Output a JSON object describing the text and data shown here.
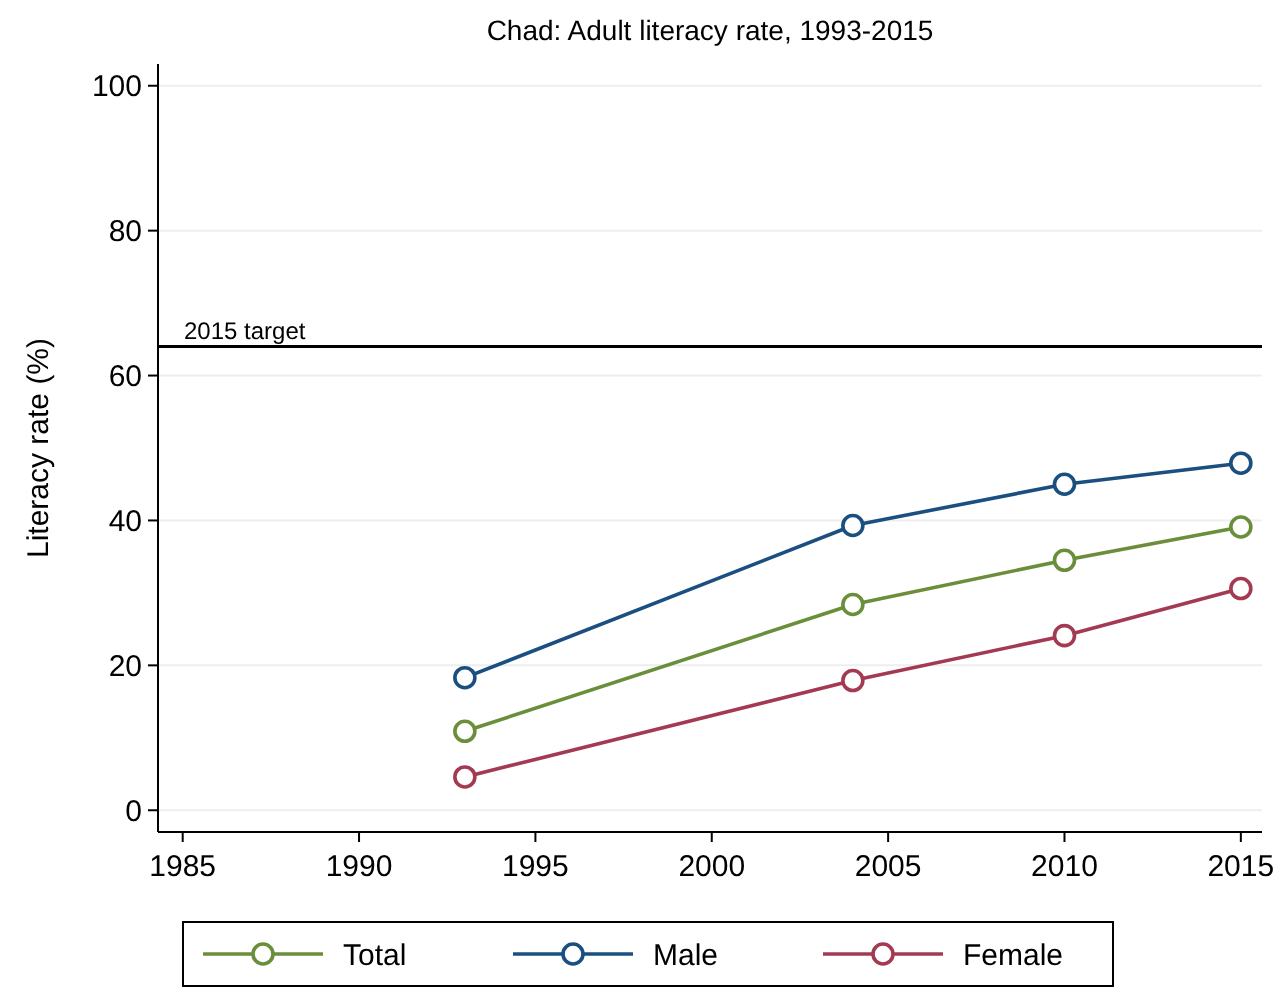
{
  "chart_data": {
    "type": "line",
    "title": "Chad: Adult literacy rate, 1993-2015",
    "ylabel": "Literacy rate (%)",
    "x": [
      1993,
      2004,
      2010,
      2015
    ],
    "series": [
      {
        "name": "Total",
        "color": "#6b8e3a",
        "values": [
          10.9,
          28.4,
          34.5,
          39.1
        ]
      },
      {
        "name": "Male",
        "color": "#1a4f7f",
        "values": [
          18.3,
          39.3,
          45.0,
          47.9
        ]
      },
      {
        "name": "Female",
        "color": "#a33a52",
        "values": [
          4.6,
          17.9,
          24.1,
          30.6
        ]
      }
    ],
    "xlim": [
      1984.3,
      2015.6
    ],
    "xticks": [
      1985,
      1990,
      1995,
      2000,
      2005,
      2010,
      2015
    ],
    "ylim": [
      -3,
      103
    ],
    "yticks": [
      0,
      20,
      40,
      60,
      80,
      100
    ],
    "ref_lines": [
      {
        "axis": "y",
        "value": 64,
        "label": "2015 target",
        "color": "#000000"
      }
    ],
    "grid": "y",
    "legend": "bottom",
    "marker": "circle",
    "line_style": "solid"
  }
}
